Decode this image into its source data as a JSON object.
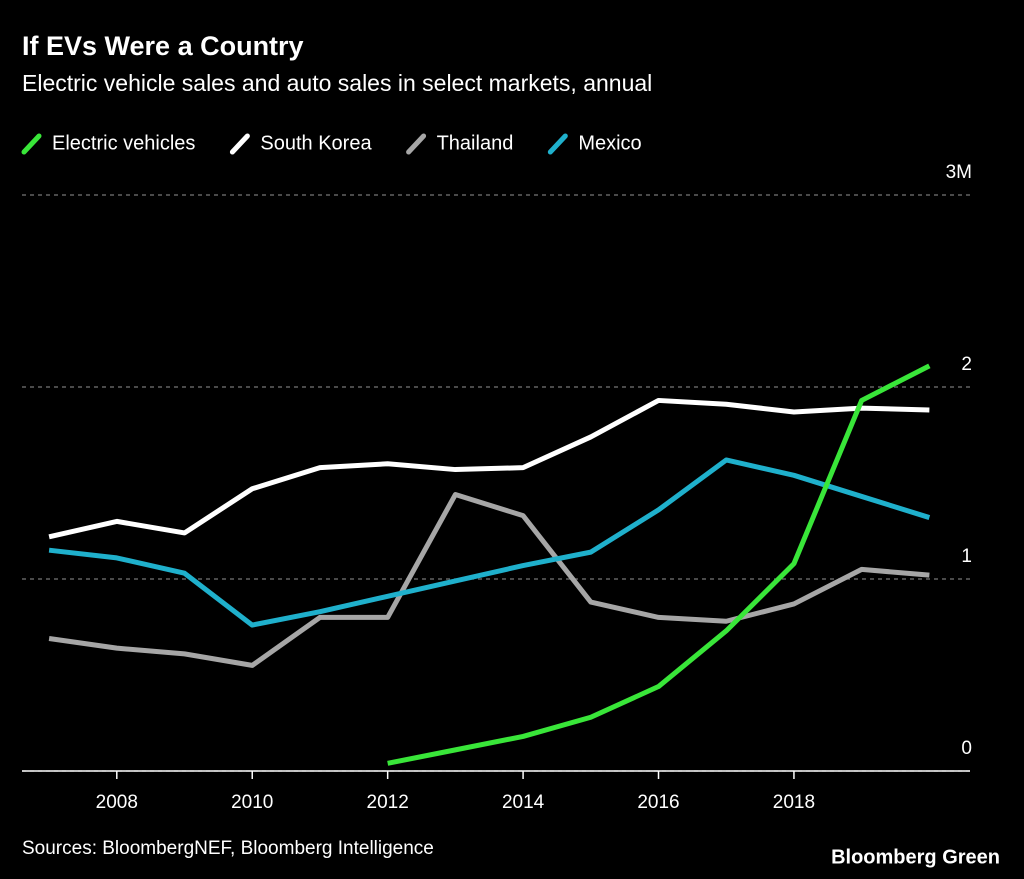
{
  "chart_data": {
    "type": "line",
    "title": "If EVs Were a Country",
    "subtitle": "Electric vehicle sales and auto sales in select markets, annual",
    "source": "Sources: BloombergNEF, Bloomberg Intelligence",
    "brand": "Bloomberg Green",
    "x": [
      2007,
      2008,
      2009,
      2010,
      2011,
      2012,
      2013,
      2014,
      2015,
      2016,
      2017,
      2018,
      2019,
      2020
    ],
    "series": [
      {
        "name": "Electric vehicles",
        "color": "#39e639",
        "values": [
          null,
          null,
          null,
          null,
          null,
          0.04,
          0.11,
          0.18,
          0.28,
          0.44,
          0.73,
          1.08,
          1.93,
          2.11
        ]
      },
      {
        "name": "South Korea",
        "color": "#ffffff",
        "values": [
          1.22,
          1.3,
          1.24,
          1.47,
          1.58,
          1.6,
          1.57,
          1.58,
          1.74,
          1.93,
          1.91,
          1.87,
          1.89,
          1.88
        ]
      },
      {
        "name": "Thailand",
        "color": "#a6a6a6",
        "values": [
          0.69,
          0.64,
          0.61,
          0.55,
          0.8,
          0.8,
          1.44,
          1.33,
          0.88,
          0.8,
          0.78,
          0.87,
          1.05,
          1.02
        ]
      },
      {
        "name": "Mexico",
        "color": "#1fb0cc",
        "values": [
          1.15,
          1.11,
          1.03,
          0.76,
          0.83,
          0.91,
          0.99,
          1.07,
          1.14,
          1.36,
          1.62,
          1.54,
          1.43,
          1.32
        ]
      }
    ],
    "xlim": [
      2006.6,
      2020.6
    ],
    "xticks": [
      2008,
      2010,
      2012,
      2014,
      2016,
      2018
    ],
    "ylim": [
      0,
      3
    ],
    "yticks": [
      0,
      1,
      2,
      {
        "value": 3,
        "label": "3M"
      }
    ],
    "grid": true
  }
}
